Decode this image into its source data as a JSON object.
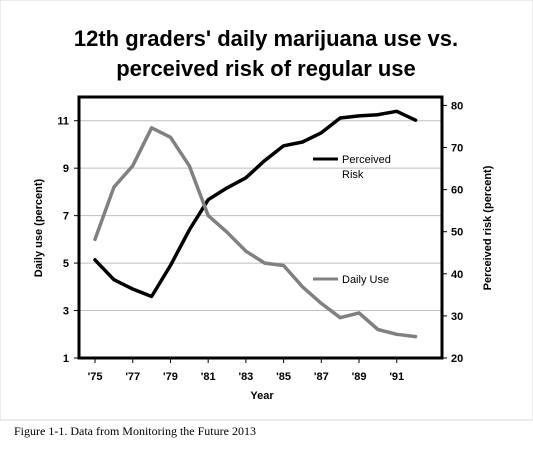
{
  "chart_data": {
    "type": "line",
    "title_lines": [
      "12th graders' daily marijuana use vs.",
      "perceived risk of regular use"
    ],
    "xlabel": "Year",
    "ylabel_left": "Daily use (percent)",
    "ylabel_right": "Perceived risk (percent)",
    "x": [
      1975,
      1976,
      1977,
      1978,
      1979,
      1980,
      1981,
      1982,
      1983,
      1984,
      1985,
      1986,
      1987,
      1988,
      1989,
      1990,
      1991,
      1992
    ],
    "x_tick_values": [
      1975,
      1977,
      1979,
      1981,
      1983,
      1985,
      1987,
      1989,
      1991
    ],
    "x_tick_labels": [
      "'75",
      "'77",
      "'79",
      "'81",
      "'83",
      "'85",
      "'87",
      "'89",
      "'91"
    ],
    "ylim_left": [
      1,
      12
    ],
    "yticks_left": [
      1,
      3,
      5,
      7,
      9,
      11
    ],
    "ylim_right": [
      20,
      82
    ],
    "yticks_right": [
      20,
      30,
      40,
      50,
      60,
      70,
      80
    ],
    "grid": "horizontal",
    "series": [
      {
        "name": "Perceived Risk",
        "axis": "right",
        "color": "#000000",
        "label_lines": [
          "Perceived",
          "Risk"
        ],
        "values": [
          43.3,
          38.6,
          36.4,
          34.6,
          42.0,
          50.4,
          57.6,
          60.4,
          62.8,
          66.9,
          70.4,
          71.3,
          73.5,
          77.0,
          77.5,
          77.8,
          78.6,
          76.5
        ]
      },
      {
        "name": "Daily Use",
        "axis": "left",
        "color": "#808080",
        "label_lines": [
          "Daily Use"
        ],
        "values": [
          6.0,
          8.2,
          9.1,
          10.7,
          10.3,
          9.1,
          7.0,
          6.3,
          5.5,
          5.0,
          4.9,
          4.0,
          3.3,
          2.7,
          2.9,
          2.2,
          2.0,
          1.9
        ]
      }
    ]
  },
  "caption": "Figure 1-1. Data from Monitoring the Future 2013"
}
